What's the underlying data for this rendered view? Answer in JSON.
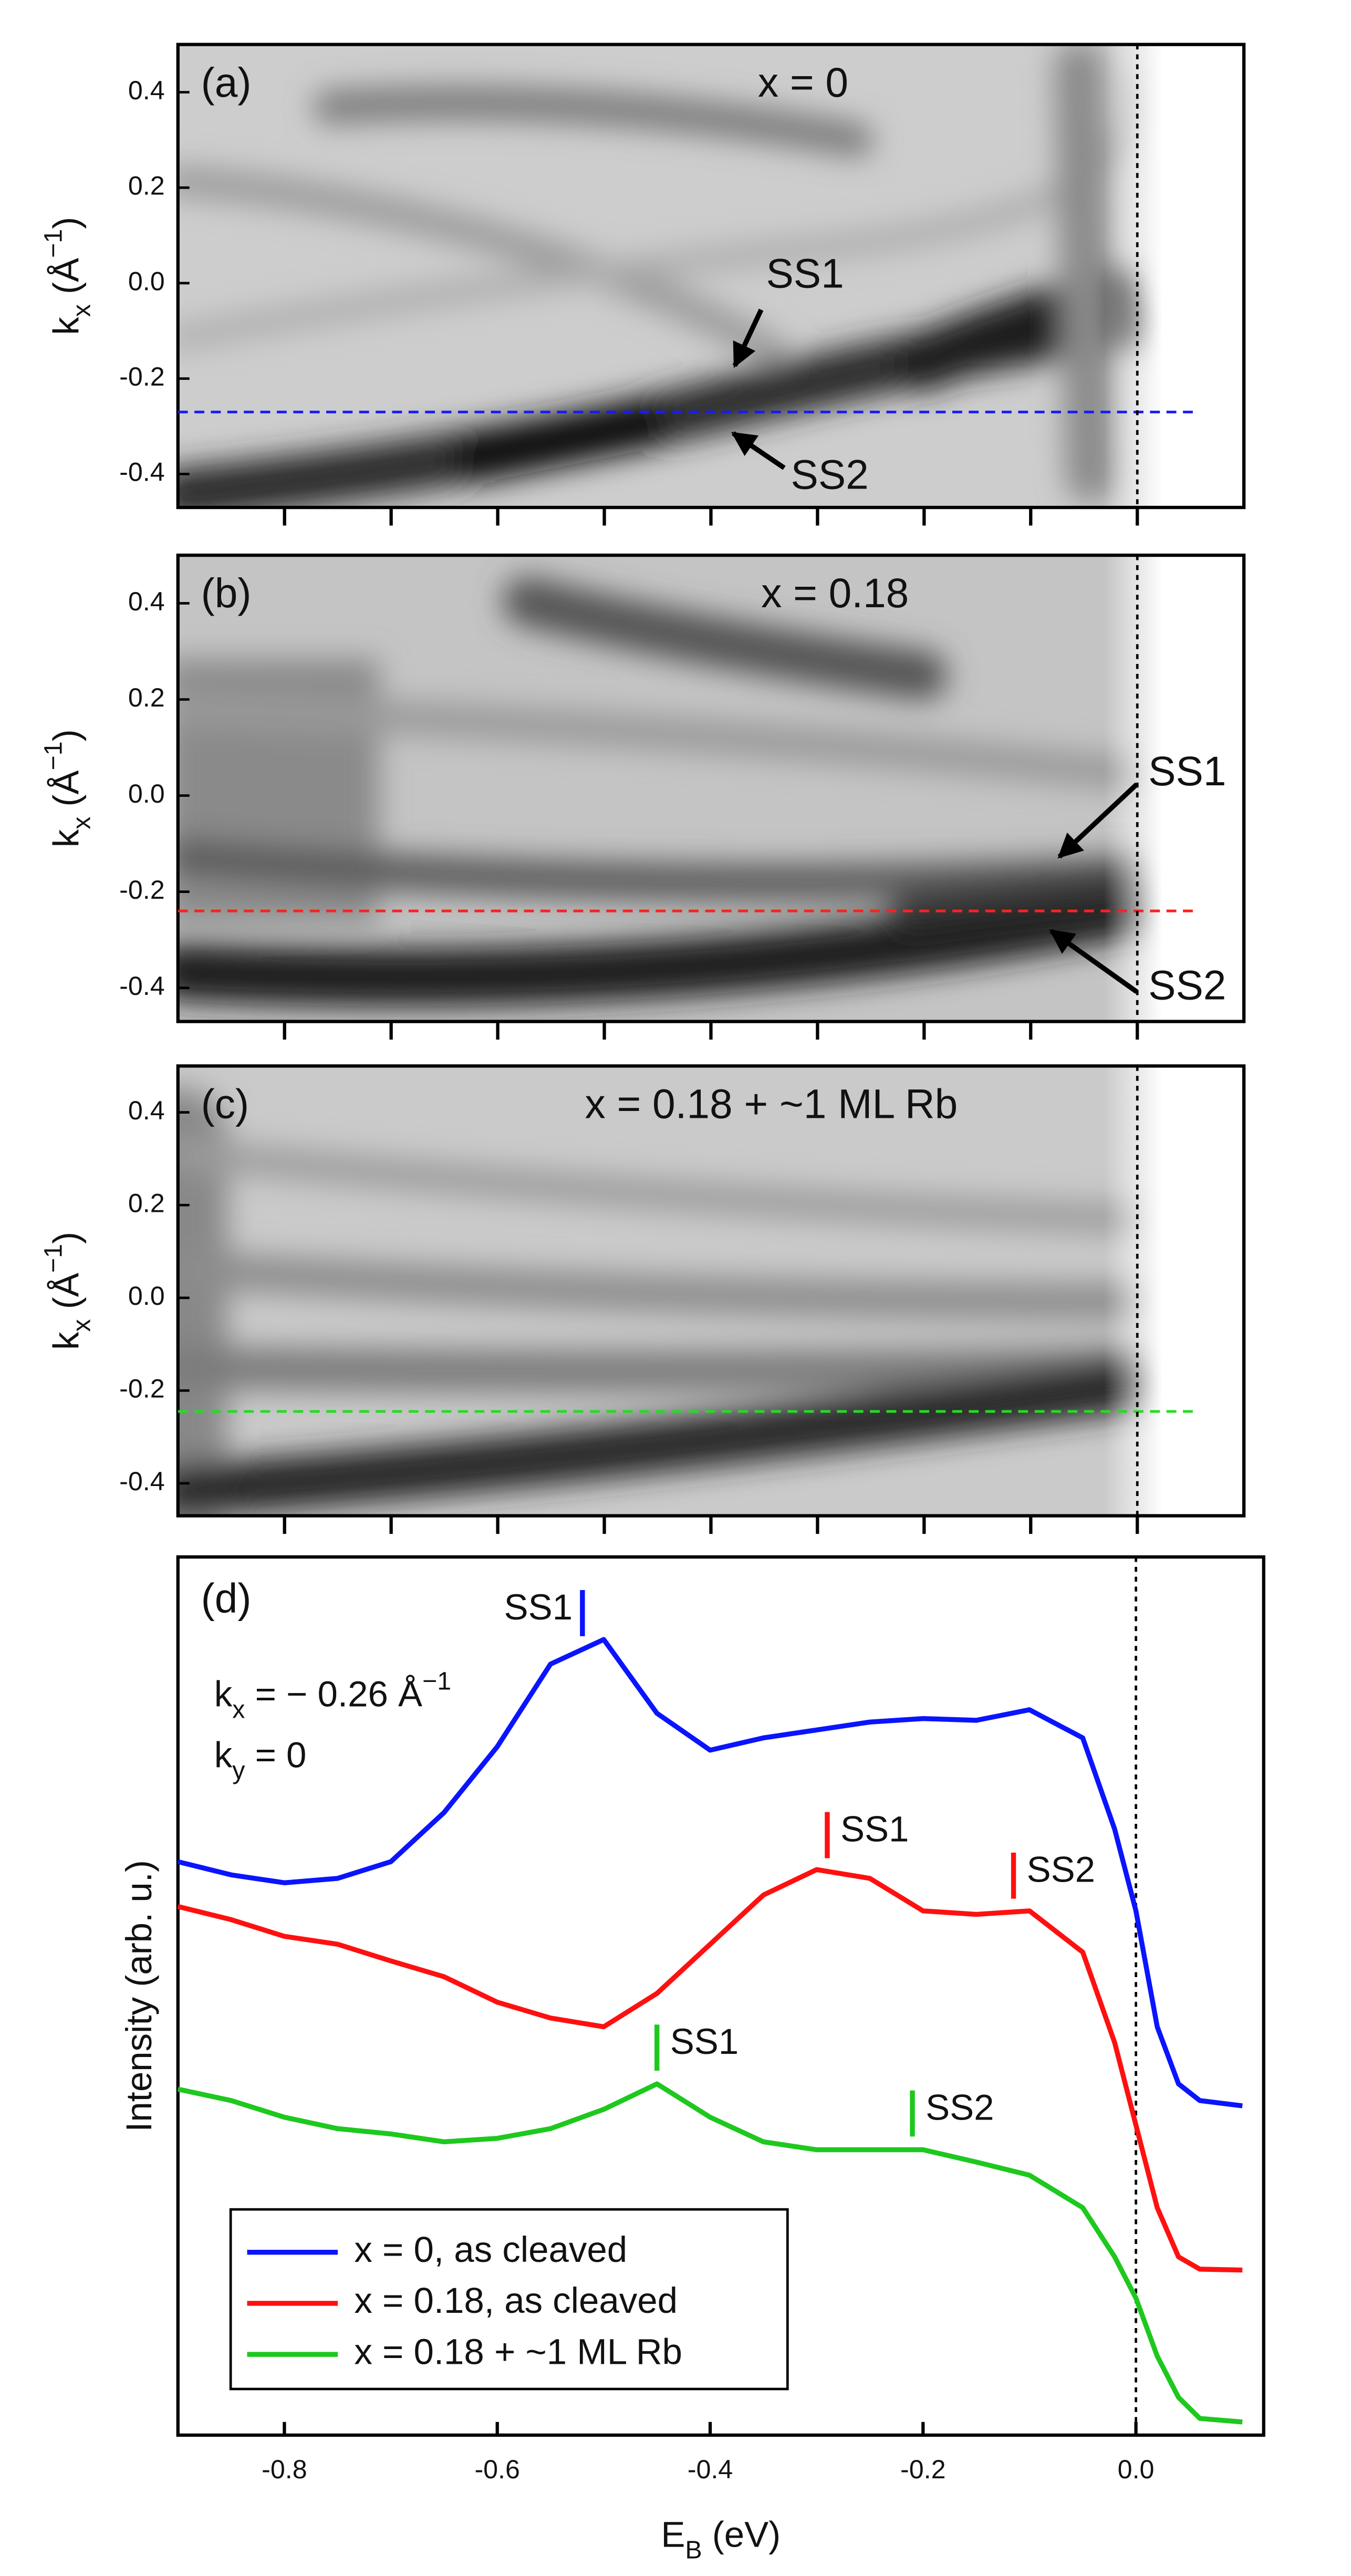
{
  "chart_data": [
    {
      "type": "image",
      "panel": "(a)",
      "title": "x = 0",
      "ylabel": [
        "k",
        "x",
        " (Å",
        "−1",
        ")"
      ],
      "xlim": [
        -0.9,
        0.1
      ],
      "xticks": [
        -0.8,
        -0.7,
        -0.6,
        -0.5,
        -0.4,
        -0.3,
        -0.2,
        -0.1,
        {
          "value": 0,
          "label": "0.0"
        }
      ],
      "ylim": [
        -0.47,
        0.5
      ],
      "yticks": [
        0.4,
        0.2,
        {
          "value": 0,
          "label": "0.0"
        },
        -0.2,
        -0.4
      ],
      "cut_k": -0.27,
      "cut_color": "#1a1aff",
      "vline": 0,
      "annotations": [
        "SS1",
        "SS2"
      ]
    },
    {
      "type": "image",
      "panel": "(b)",
      "title": "x = 0.18",
      "ylabel": [
        "k",
        "x",
        " (Å",
        "−1",
        ")"
      ],
      "xlim": [
        -0.9,
        0.1
      ],
      "xticks": [
        -0.8,
        -0.7,
        -0.6,
        -0.5,
        -0.4,
        -0.3,
        -0.2,
        -0.1,
        {
          "value": 0,
          "label": "0.0"
        }
      ],
      "ylim": [
        -0.47,
        0.5
      ],
      "yticks": [
        0.4,
        0.2,
        {
          "value": 0,
          "label": "0.0"
        },
        -0.2,
        -0.4
      ],
      "cut_k": -0.24,
      "cut_color": "#ff2020",
      "vline": 0,
      "annotations": [
        "SS1",
        "SS2"
      ]
    },
    {
      "type": "image",
      "panel": "(c)",
      "title": "x = 0.18 + ~1 ML Rb",
      "ylabel": [
        "k",
        "x",
        " (Å",
        "−1",
        ")"
      ],
      "xlim": [
        -0.9,
        0.1
      ],
      "xticks": [
        -0.8,
        -0.7,
        -0.6,
        -0.5,
        -0.4,
        -0.3,
        -0.2,
        -0.1,
        {
          "value": 0,
          "label": "0.0"
        }
      ],
      "ylim": [
        -0.47,
        0.5
      ],
      "yticks": [
        0.4,
        0.2,
        {
          "value": 0,
          "label": "0.0"
        },
        -0.2,
        -0.4
      ],
      "cut_k": -0.245,
      "cut_color": "#22dd22",
      "vline": 0
    },
    {
      "type": "line",
      "panel": "(d)",
      "annotations": [
        [
          "k",
          "x",
          " = − 0.26 Å",
          "−1"
        ],
        [
          "k",
          "y",
          " = 0"
        ]
      ],
      "xlabel": [
        "E",
        "B",
        " (eV)"
      ],
      "ylabel": "Intensity (arb. u.)",
      "xlim": [
        -0.9,
        0.12
      ],
      "xticks": [
        -0.8,
        -0.6,
        -0.4,
        -0.2,
        {
          "value": 0,
          "label": "0.0"
        }
      ],
      "ylim": [
        0,
        10
      ],
      "vline": 0,
      "legend": "lower left",
      "x": [
        -0.9,
        -0.85,
        -0.8,
        -0.75,
        -0.7,
        -0.65,
        -0.6,
        -0.55,
        -0.5,
        -0.45,
        -0.4,
        -0.35,
        -0.3,
        -0.25,
        -0.2,
        -0.15,
        -0.1,
        -0.05,
        -0.02,
        0,
        0.02,
        0.04,
        0.06,
        0.1
      ],
      "series": [
        {
          "name": "x = 0, as cleaved",
          "color": "#0a14ff",
          "values": [
            6.53,
            6.38,
            6.29,
            6.34,
            6.53,
            7.09,
            7.84,
            8.78,
            9.06,
            8.22,
            7.8,
            7.94,
            8.03,
            8.12,
            8.16,
            8.14,
            8.26,
            7.94,
            6.9,
            5.97,
            4.65,
            4.0,
            3.81,
            3.75
          ],
          "markers": [
            {
              "label": "SS1",
              "x": -0.52
            }
          ]
        },
        {
          "name": "x = 0.18, as cleaved",
          "color": "#ff1010",
          "values": [
            6.02,
            5.87,
            5.68,
            5.59,
            5.4,
            5.22,
            4.93,
            4.75,
            4.65,
            5.03,
            5.59,
            6.15,
            6.44,
            6.34,
            5.97,
            5.93,
            5.97,
            5.5,
            4.47,
            3.53,
            2.59,
            2.03,
            1.89,
            1.88
          ],
          "markers": [
            {
              "label": "SS1",
              "x": -0.29
            },
            {
              "label": "SS2",
              "x": -0.115
            }
          ]
        },
        {
          "name": "x = 0.18 + ~1 ML Rb",
          "color": "#1ec81e",
          "values": [
            3.94,
            3.81,
            3.62,
            3.49,
            3.43,
            3.34,
            3.38,
            3.49,
            3.71,
            4.0,
            3.62,
            3.34,
            3.25,
            3.25,
            3.25,
            3.11,
            2.96,
            2.59,
            2.03,
            1.56,
            0.9,
            0.43,
            0.19,
            0.15
          ],
          "markers": [
            {
              "label": "SS1",
              "x": -0.45
            },
            {
              "label": "SS2",
              "x": -0.21
            }
          ]
        }
      ]
    }
  ]
}
